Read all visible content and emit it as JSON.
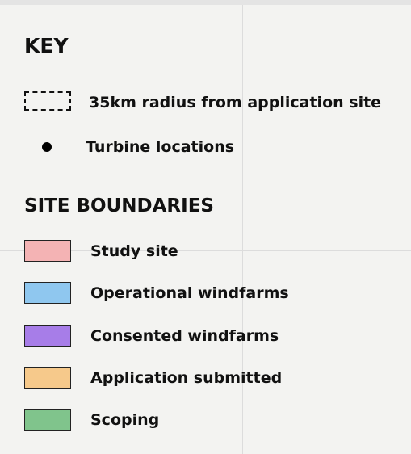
{
  "legend": {
    "title": "KEY",
    "symbols": [
      {
        "label": "35km radius from application site",
        "symbol": "dashed-box"
      },
      {
        "label": "Turbine locations",
        "symbol": "dot"
      }
    ],
    "section_title": "SITE BOUNDARIES",
    "boundaries": [
      {
        "label": "Study site",
        "color": "#f4b3b4"
      },
      {
        "label": "Operational windfarms",
        "color": "#8fc7ef"
      },
      {
        "label": "Consented windfarms",
        "color": "#a77de8"
      },
      {
        "label": "Application submitted",
        "color": "#f6c98b"
      },
      {
        "label": "Scoping",
        "color": "#80c48c"
      }
    ]
  }
}
